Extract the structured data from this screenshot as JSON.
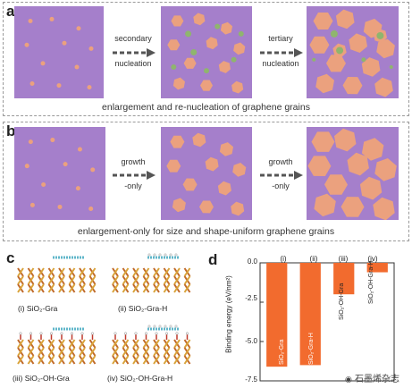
{
  "panel_a": {
    "letter": "a",
    "step1": [
      "secondary",
      "nucleation"
    ],
    "step2": [
      "tertiary",
      "nucleation"
    ],
    "caption": "enlargement and re-nucleation of graphene grains"
  },
  "panel_b": {
    "letter": "b",
    "step1": [
      "growth",
      "-only"
    ],
    "step2": [
      "growth",
      "-only"
    ],
    "caption": "enlargement-only for size and shape-uniform graphene grains"
  },
  "panel_c": {
    "letter": "c",
    "labels": [
      "(i) SiO₂-Gra",
      "(ii) SiO₂-Gra-H",
      "(iii) SiO₂-OH-Gra",
      "(iv) SiO₂-OH-Gra-H"
    ]
  },
  "panel_d": {
    "letter": "d",
    "watermark": "石墨烯杂志"
  },
  "colors": {
    "substrate": "#a57fcb",
    "grain": "#eba17e",
    "nucleus": "#8fb56e",
    "bar": "#f26b2e",
    "arrow": "#555555"
  },
  "chart_data": {
    "type": "bar",
    "categories": [
      "(i)",
      "(ii)",
      "(iii)",
      "(iv)"
    ],
    "bar_labels": [
      "SiO₂-Gra",
      "SiO₂-Gra-H",
      "SiO₂-OH-Gra",
      "SiO₂-OH-Gra-H"
    ],
    "values": [
      -6.6,
      -6.5,
      -2.0,
      -0.6
    ],
    "ylabel": "Binding energy (eV/nm²)",
    "yticks": [
      "0.0",
      "-2.5",
      "-5.0",
      "-7.5"
    ],
    "ylim": [
      -7.5,
      0
    ]
  }
}
